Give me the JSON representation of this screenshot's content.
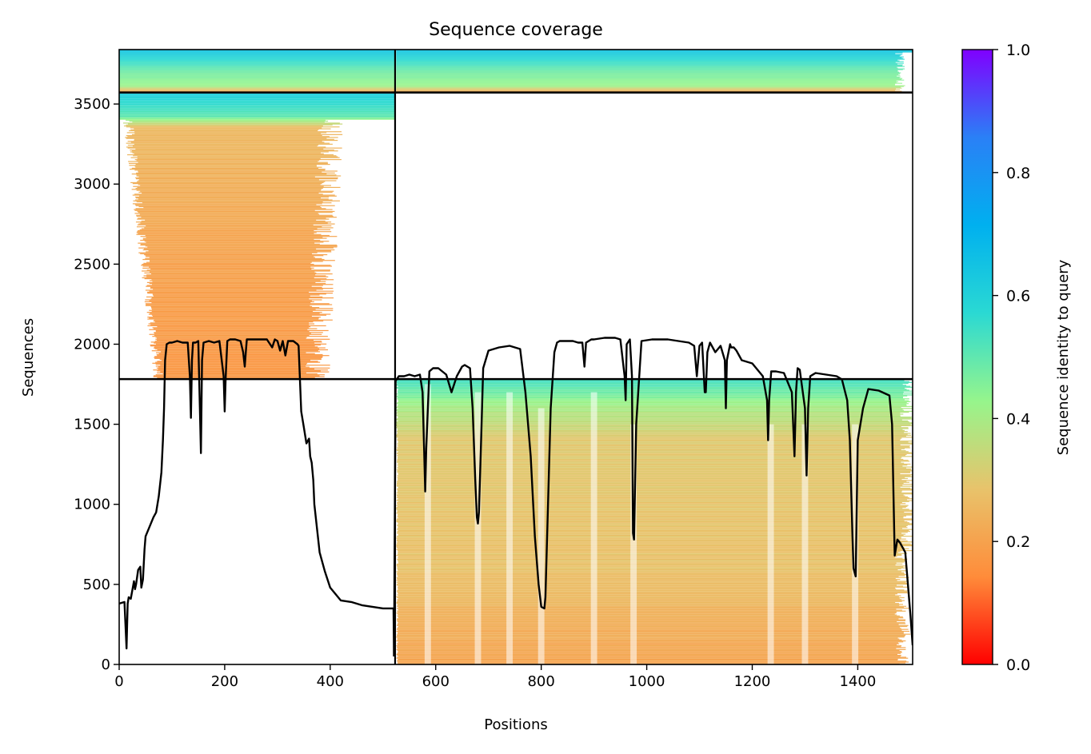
{
  "chart_data": {
    "type": "heatmap",
    "title": "Sequence coverage",
    "xlabel": "Positions",
    "ylabel": "Sequences",
    "xlim": [
      0,
      1504
    ],
    "ylim": [
      0,
      3840
    ],
    "x_ticks": [
      0,
      200,
      400,
      600,
      800,
      1000,
      1200,
      1400
    ],
    "y_ticks": [
      0,
      500,
      1000,
      1500,
      2000,
      2500,
      3000,
      3500
    ],
    "colorbar": {
      "label": "Sequence identity to query",
      "range": [
        0,
        1
      ],
      "ticks": [
        "0.0",
        "0.2",
        "0.4",
        "0.6",
        "0.8",
        "1.0"
      ],
      "colormap": "rainbow_r",
      "stops": [
        "#ff0000",
        "#ff8c3a",
        "#e8c36b",
        "#96f58c",
        "#2ad9d3",
        "#00b0ef",
        "#2a80f6",
        "#8000ff"
      ]
    },
    "dividers": {
      "vertical_x": 523,
      "horizontal_y": [
        1782,
        3572
      ]
    },
    "blocks": [
      {
        "name": "lower-right",
        "x_range": [
          523,
          1504
        ],
        "y_range": [
          0,
          1782
        ],
        "min_row_x": [
          [
            0,
            528,
            1470
          ],
          [
            800,
            528,
            1490
          ],
          [
            1400,
            530,
            1504
          ]
        ],
        "identity_by_row": [
          [
            0,
            0.2
          ],
          [
            600,
            0.28
          ],
          [
            1400,
            0.3
          ],
          [
            1600,
            0.4
          ],
          [
            1782,
            0.55
          ]
        ]
      },
      {
        "name": "middle-left",
        "x_range": [
          0,
          523
        ],
        "y_range": [
          1782,
          3572
        ],
        "identity_by_row": [
          [
            1782,
            0.17
          ],
          [
            2500,
            0.2
          ],
          [
            3350,
            0.26
          ],
          [
            3420,
            0.5
          ],
          [
            3572,
            0.62
          ]
        ]
      },
      {
        "name": "top-band",
        "x_range": [
          0,
          1504
        ],
        "y_range": [
          3572,
          3840
        ],
        "identity_by_row": [
          [
            3572,
            0.2
          ],
          [
            3610,
            0.42
          ],
          [
            3720,
            0.5
          ],
          [
            3840,
            0.65
          ]
        ]
      }
    ],
    "series": [
      {
        "type": "line",
        "color": "#000000",
        "x": [
          0,
          10,
          14,
          16,
          18,
          22,
          28,
          30,
          32,
          36,
          40,
          42,
          45,
          48,
          50,
          55,
          60,
          65,
          70,
          75,
          80,
          83,
          85,
          87,
          90,
          95,
          100,
          110,
          120,
          130,
          134,
          136,
          138,
          140,
          145,
          150,
          153,
          155,
          157,
          160,
          170,
          180,
          190,
          198,
          200,
          202,
          205,
          210,
          220,
          230,
          235,
          238,
          240,
          242,
          245,
          260,
          280,
          290,
          295,
          300,
          305,
          310,
          315,
          320,
          330,
          338,
          340,
          345,
          350,
          355,
          360,
          362,
          365,
          368,
          370,
          375,
          380,
          390,
          400,
          420,
          440,
          460,
          480,
          500,
          520,
          521
        ],
        "y": [
          380,
          390,
          100,
          380,
          420,
          410,
          520,
          470,
          500,
          590,
          610,
          480,
          530,
          720,
          800,
          840,
          880,
          920,
          950,
          1050,
          1200,
          1400,
          1600,
          1900,
          2000,
          2010,
          2010,
          2020,
          2010,
          2010,
          1800,
          1540,
          1900,
          2010,
          2010,
          2020,
          1600,
          1320,
          1900,
          2010,
          2020,
          2010,
          2020,
          1800,
          1580,
          1800,
          2020,
          2030,
          2030,
          2020,
          1950,
          1860,
          1950,
          2030,
          2030,
          2030,
          2030,
          1980,
          2030,
          2020,
          1960,
          2020,
          1930,
          2020,
          2020,
          2000,
          1990,
          1580,
          1480,
          1380,
          1410,
          1300,
          1260,
          1150,
          1000,
          850,
          700,
          580,
          480,
          400,
          390,
          370,
          360,
          350,
          350,
          50
        ],
        "x2": [
          521,
          524,
          530,
          540,
          550,
          560,
          570,
          575,
          578,
          580,
          582,
          588,
          595,
          605,
          620,
          630,
          640,
          650,
          655,
          665,
          670,
          675,
          678,
          680,
          682,
          686,
          690,
          700,
          720,
          740,
          760,
          770,
          780,
          788,
          795,
          800,
          806,
          808,
          812,
          818,
          825,
          830,
          835,
          845,
          860,
          870,
          878,
          882,
          885,
          890,
          895,
          900,
          920,
          940,
          950,
          958,
          960,
          962,
          968,
          972,
          974,
          976,
          980,
          990,
          1010,
          1040,
          1060,
          1080,
          1090,
          1095,
          1100,
          1105,
          1110,
          1112,
          1115,
          1120,
          1130,
          1140,
          1148,
          1150,
          1152,
          1158,
          1160,
          1165,
          1170,
          1180,
          1200,
          1220,
          1228,
          1230,
          1232,
          1236,
          1245,
          1260,
          1275,
          1280,
          1283,
          1286,
          1290,
          1300,
          1303,
          1306,
          1310,
          1320,
          1340,
          1360,
          1370,
          1380,
          1385,
          1390,
          1392,
          1396,
          1400,
          1410,
          1420,
          1440,
          1460,
          1465,
          1468,
          1470,
          1475,
          1480,
          1490,
          1500,
          1504
        ],
        "y2": [
          50,
          1770,
          1800,
          1800,
          1810,
          1800,
          1810,
          1700,
          1350,
          1080,
          1350,
          1830,
          1850,
          1850,
          1810,
          1700,
          1800,
          1860,
          1870,
          1850,
          1600,
          1150,
          920,
          880,
          950,
          1400,
          1850,
          1960,
          1980,
          1990,
          1970,
          1700,
          1300,
          800,
          500,
          360,
          350,
          420,
          900,
          1600,
          1950,
          2010,
          2020,
          2020,
          2020,
          2010,
          2010,
          1860,
          2010,
          2020,
          2030,
          2030,
          2040,
          2040,
          2030,
          1800,
          1650,
          2000,
          2030,
          1800,
          820,
          780,
          1500,
          2020,
          2030,
          2030,
          2020,
          2010,
          1990,
          1800,
          1990,
          2010,
          1700,
          1700,
          1950,
          2010,
          1950,
          1990,
          1900,
          1600,
          1900,
          2000,
          1980,
          1980,
          1960,
          1900,
          1880,
          1800,
          1650,
          1400,
          1650,
          1830,
          1830,
          1820,
          1700,
          1300,
          1700,
          1850,
          1840,
          1600,
          1180,
          1600,
          1800,
          1820,
          1810,
          1800,
          1780,
          1650,
          1400,
          800,
          600,
          550,
          1400,
          1600,
          1720,
          1710,
          1680,
          1500,
          1000,
          680,
          780,
          760,
          700,
          300,
          120
        ]
      }
    ]
  }
}
